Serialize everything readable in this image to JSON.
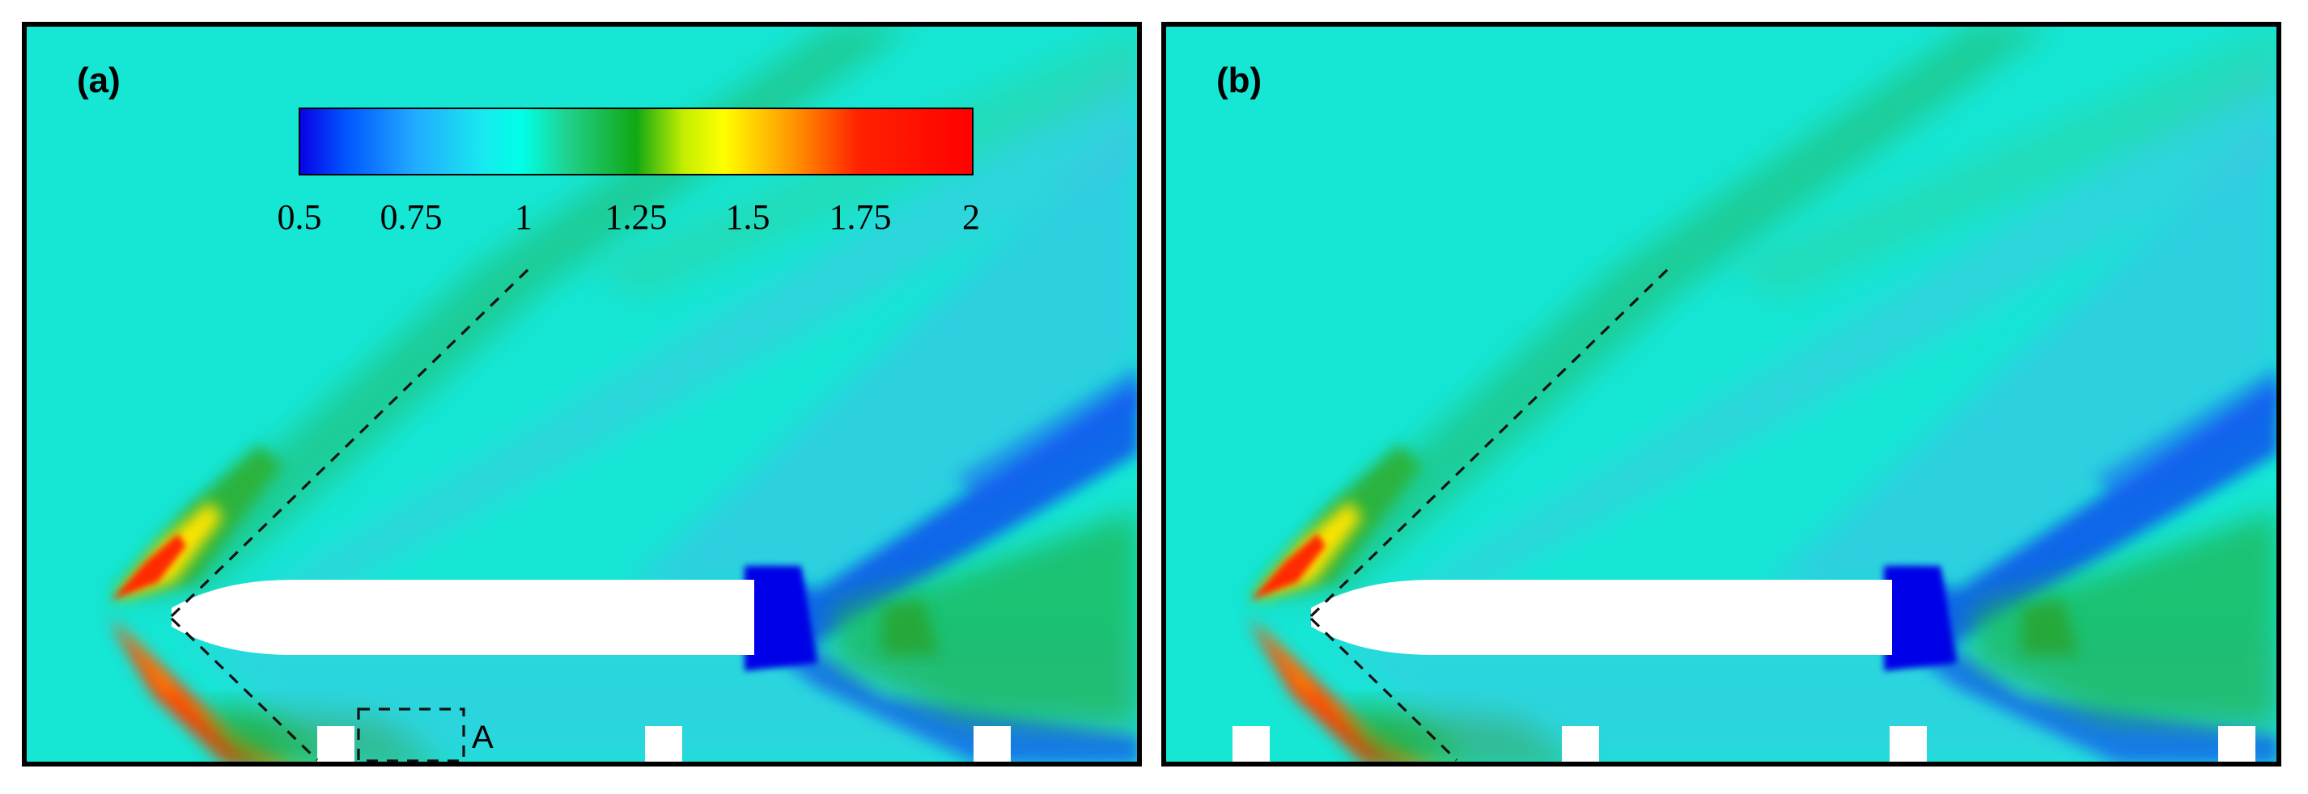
{
  "panels": [
    {
      "id": "a",
      "label": "(a)",
      "box_label": "A",
      "blocks": 3
    },
    {
      "id": "b",
      "label": "(b)",
      "blocks": 4
    }
  ],
  "colorbar": {
    "ticks": [
      "0.5",
      "0.75",
      "1",
      "1.25",
      "1.5",
      "1.75",
      "2"
    ],
    "min": 0.5,
    "max": 2.0,
    "stops": [
      {
        "value": 0.5,
        "color": "#0a00e6"
      },
      {
        "value": 0.6,
        "color": "#0057ff"
      },
      {
        "value": 0.75,
        "color": "#22aaff"
      },
      {
        "value": 0.9,
        "color": "#19e8f0"
      },
      {
        "value": 1.0,
        "color": "#00ffe8"
      },
      {
        "value": 1.1,
        "color": "#20d08a"
      },
      {
        "value": 1.25,
        "color": "#11a814"
      },
      {
        "value": 1.35,
        "color": "#c2ee00"
      },
      {
        "value": 1.45,
        "color": "#ffff00"
      },
      {
        "value": 1.6,
        "color": "#ff9900"
      },
      {
        "value": 1.75,
        "color": "#ff2200"
      },
      {
        "value": 2.0,
        "color": "#ff0000"
      }
    ]
  },
  "colors": {
    "background_field": "#16e6d4",
    "body": "#ffffff",
    "frame": "#000000"
  }
}
